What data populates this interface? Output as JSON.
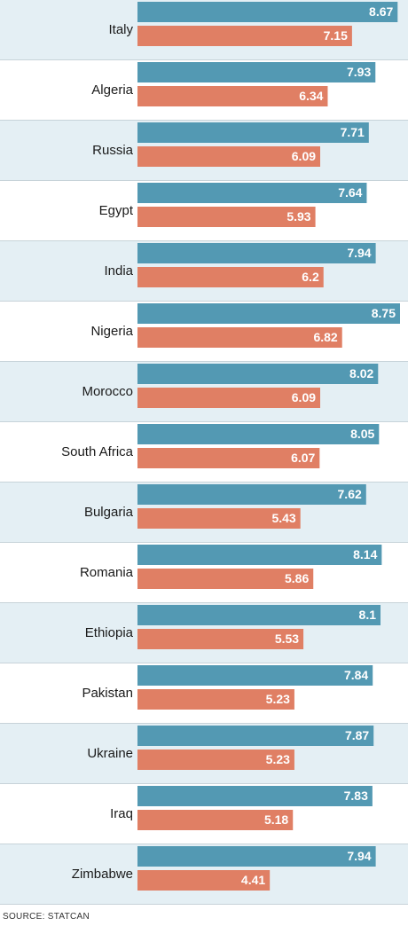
{
  "chart_data": {
    "type": "bar",
    "orientation": "horizontal",
    "categories": [
      "Italy",
      "Algeria",
      "Russia",
      "Egypt",
      "India",
      "Nigeria",
      "Morocco",
      "South Africa",
      "Bulgaria",
      "Romania",
      "Ethiopia",
      "Pakistan",
      "Ukraine",
      "Iraq",
      "Zimbabwe"
    ],
    "series": [
      {
        "values": [
          8.67,
          7.93,
          7.71,
          7.64,
          7.94,
          8.75,
          8.02,
          8.05,
          7.62,
          8.14,
          8.1,
          7.84,
          7.87,
          7.83,
          7.94
        ],
        "labels": [
          "8.67",
          "7.93",
          "7.71",
          "7.64",
          "7.94",
          "8.75",
          "8.02",
          "8.05",
          "7.62",
          "8.14",
          "8.1",
          "7.84",
          "7.87",
          "7.83",
          "7.94"
        ]
      },
      {
        "values": [
          7.15,
          6.34,
          6.09,
          5.93,
          6.2,
          6.82,
          6.09,
          6.07,
          5.43,
          5.86,
          5.53,
          5.23,
          5.23,
          5.18,
          4.41
        ],
        "labels": [
          "7.15",
          "6.34",
          "6.09",
          "5.93",
          "6.2",
          "6.82",
          "6.09",
          "6.07",
          "5.43",
          "5.86",
          "5.53",
          "5.23",
          "5.23",
          "5.18",
          "4.41"
        ]
      }
    ],
    "title": "",
    "xlabel": "",
    "ylabel": "",
    "xlim": [
      0,
      8.75
    ],
    "grid": false,
    "legend": "none"
  },
  "colors": {
    "series1": "#5399b3",
    "series2": "#e07f64",
    "band_shaded": "#e4eff4",
    "band_plain": "#ffffff",
    "separator": "#c7d3d9"
  },
  "source": "SOURCE: STATCAN"
}
